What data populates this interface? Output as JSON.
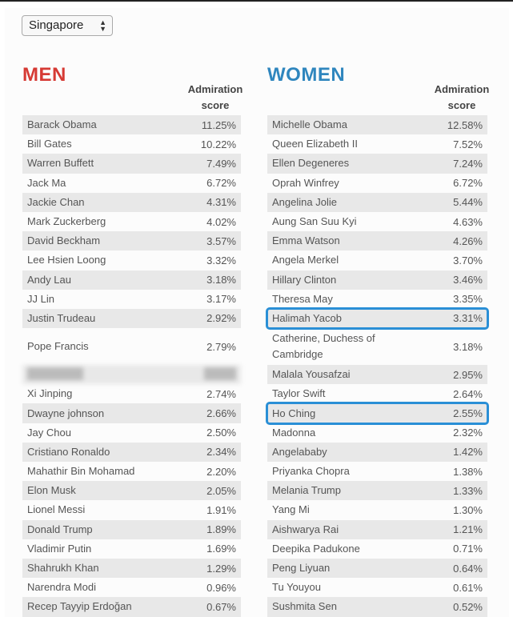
{
  "country_select": {
    "value": "Singapore"
  },
  "men": {
    "title": "MEN",
    "score_header": "Admiration score",
    "rows": [
      {
        "name": "Barack Obama",
        "score": "11.25%"
      },
      {
        "name": "Bill Gates",
        "score": "10.22%"
      },
      {
        "name": "Warren Buffett",
        "score": "7.49%"
      },
      {
        "name": "Jack Ma",
        "score": "6.72%"
      },
      {
        "name": "Jackie Chan",
        "score": "4.31%"
      },
      {
        "name": "Mark Zuckerberg",
        "score": "4.02%"
      },
      {
        "name": "David Beckham",
        "score": "3.57%"
      },
      {
        "name": "Lee Hsien Loong",
        "score": "3.32%"
      },
      {
        "name": "Andy Lau",
        "score": "3.18%"
      },
      {
        "name": "JJ Lin",
        "score": "3.17%"
      },
      {
        "name": "Justin Trudeau",
        "score": "2.92%"
      },
      {
        "name": "Pope Francis",
        "score": "2.79%"
      },
      {
        "redacted": true
      },
      {
        "name": "Xi Jinping",
        "score": "2.74%"
      },
      {
        "name": "Dwayne johnson",
        "score": "2.66%"
      },
      {
        "name": "Jay Chou",
        "score": "2.50%"
      },
      {
        "name": "Cristiano Ronaldo",
        "score": "2.34%"
      },
      {
        "name": "Mahathir Bin Mohamad",
        "score": "2.20%"
      },
      {
        "name": "Elon Musk",
        "score": "2.05%"
      },
      {
        "name": "Lionel Messi",
        "score": "1.91%"
      },
      {
        "name": "Donald Trump",
        "score": "1.89%"
      },
      {
        "name": "Vladimir Putin",
        "score": "1.69%"
      },
      {
        "name": "Shahrukh Khan",
        "score": "1.29%"
      },
      {
        "name": "Narendra Modi",
        "score": "0.96%"
      },
      {
        "name": "Recep Tayyip Erdoğan",
        "score": "0.67%"
      }
    ]
  },
  "women": {
    "title": "WOMEN",
    "score_header": "Admiration score",
    "rows": [
      {
        "name": "Michelle Obama",
        "score": "12.58%"
      },
      {
        "name": "Queen Elizabeth II",
        "score": "7.52%"
      },
      {
        "name": "Ellen Degeneres",
        "score": "7.24%"
      },
      {
        "name": "Oprah Winfrey",
        "score": "6.72%"
      },
      {
        "name": "Angelina Jolie",
        "score": "5.44%"
      },
      {
        "name": "Aung San Suu Kyi",
        "score": "4.63%"
      },
      {
        "name": "Emma Watson",
        "score": "4.26%"
      },
      {
        "name": "Angela Merkel",
        "score": "3.70%"
      },
      {
        "name": "Hillary Clinton",
        "score": "3.46%"
      },
      {
        "name": "Theresa May",
        "score": "3.35%"
      },
      {
        "name": "Halimah Yacob",
        "score": "3.31%",
        "highlighted": true
      },
      {
        "name": "Catherine, Duchess of Cambridge",
        "score": "3.18%"
      },
      {
        "name": "Malala Yousafzai",
        "score": "2.95%"
      },
      {
        "name": "Taylor Swift",
        "score": "2.64%"
      },
      {
        "name": "Ho Ching",
        "score": "2.55%",
        "highlighted": true
      },
      {
        "name": "Madonna",
        "score": "2.32%"
      },
      {
        "name": "Angelababy",
        "score": "1.42%"
      },
      {
        "name": "Priyanka Chopra",
        "score": "1.38%"
      },
      {
        "name": "Melania Trump",
        "score": "1.33%"
      },
      {
        "name": "Yang Mi",
        "score": "1.30%"
      },
      {
        "name": "Aishwarya Rai",
        "score": "1.21%"
      },
      {
        "name": "Deepika Padukone",
        "score": "0.71%"
      },
      {
        "name": "Peng Liyuan",
        "score": "0.64%"
      },
      {
        "name": "Tu Youyou",
        "score": "0.61%"
      },
      {
        "name": "Sushmita Sen",
        "score": "0.52%"
      }
    ]
  },
  "colors": {
    "men_title": "#d63a34",
    "women_title": "#2f86be",
    "highlight": "#2a8fd6",
    "row_shade": "#e8e8e8"
  }
}
